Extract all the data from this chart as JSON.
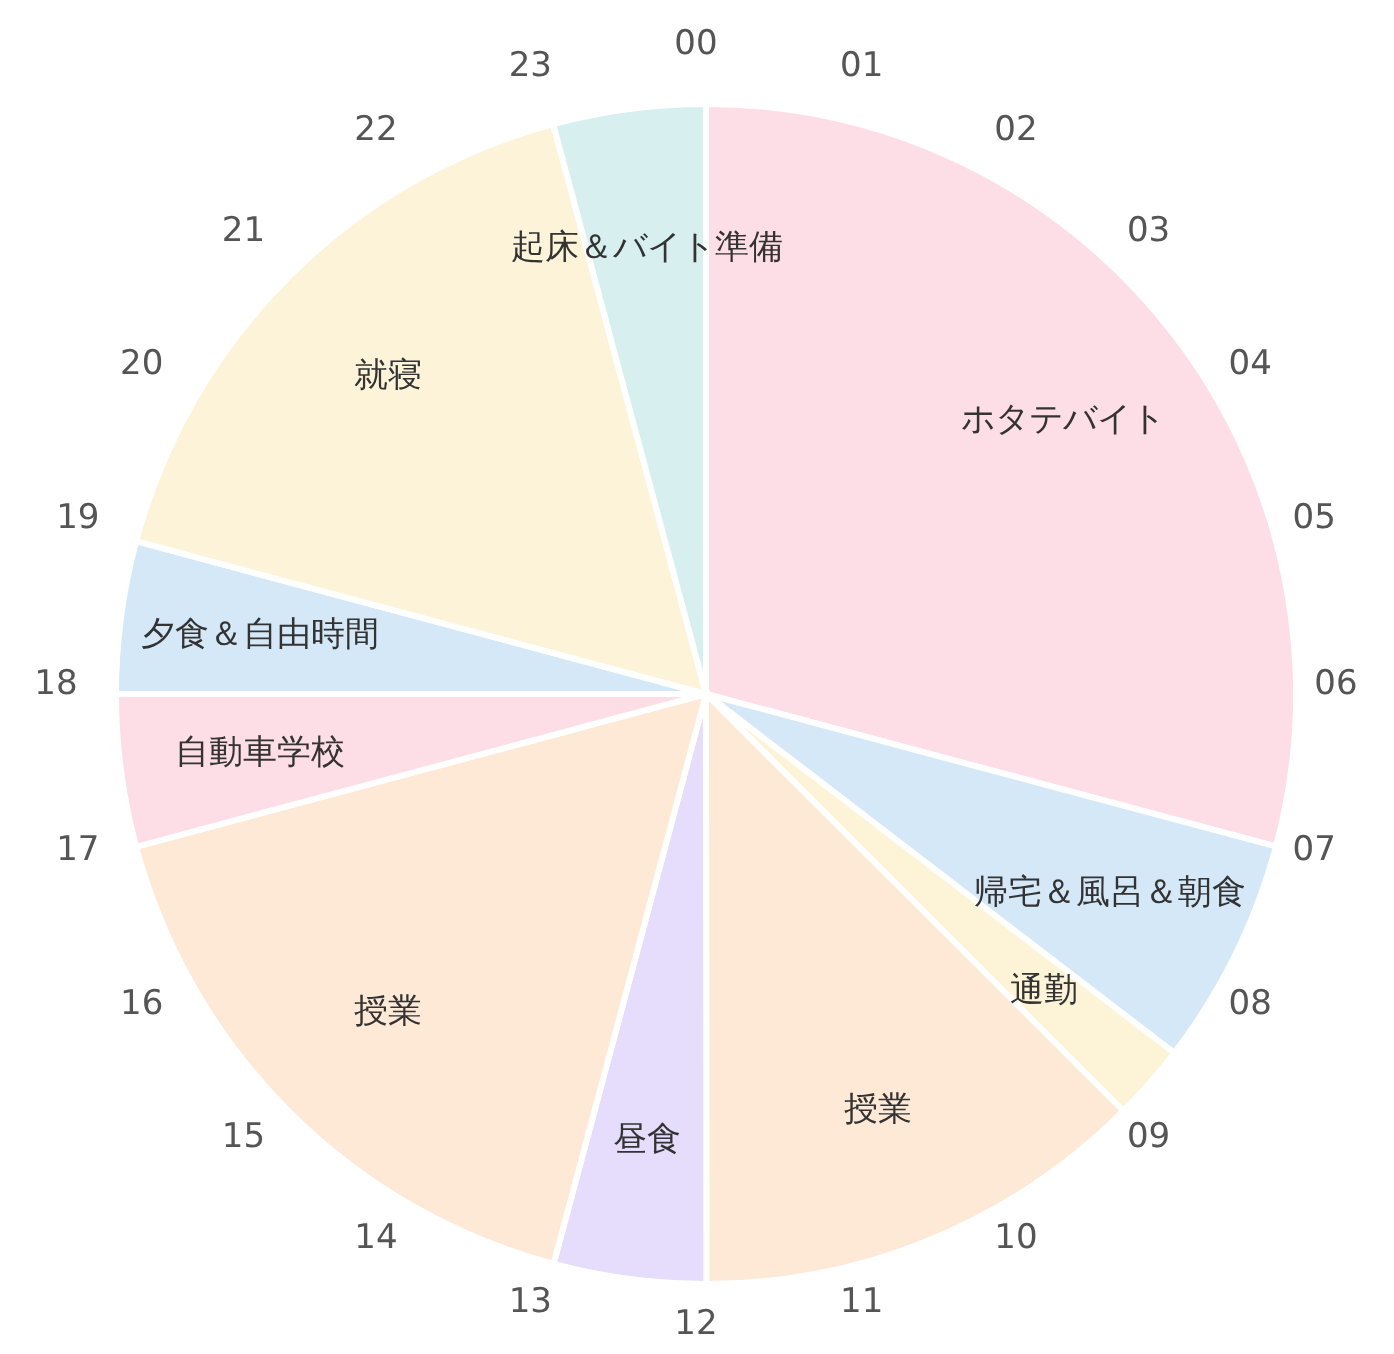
{
  "chart_data": {
    "type": "pie",
    "categories": [
      "ホタテバイト",
      "帰宅＆風呂＆朝食",
      "通勤",
      "授業",
      "昼食",
      "授業",
      "自動車学校",
      "夕食＆自由時間",
      "就寝",
      "起床＆バイト準備"
    ],
    "values": [
      29.16,
      6.25,
      2.08,
      12.5,
      4.17,
      16.67,
      4.17,
      4.17,
      16.66,
      4.17
    ],
    "colors": [
      "#fddde6",
      "#d4e8f8",
      "#fdf3d6",
      "#fde9d6",
      "#e6dcfb",
      "#fde9d6",
      "#fddde6",
      "#d4e8f8",
      "#fdf3d9",
      "#d8eff0"
    ],
    "annotations": [
      "00",
      "01",
      "02",
      "03",
      "04",
      "05",
      "06",
      "07",
      "08",
      "09",
      "10",
      "11",
      "12",
      "13",
      "14",
      "15",
      "16",
      "17",
      "18",
      "19",
      "20",
      "21",
      "22",
      "23"
    ],
    "legend": false
  }
}
